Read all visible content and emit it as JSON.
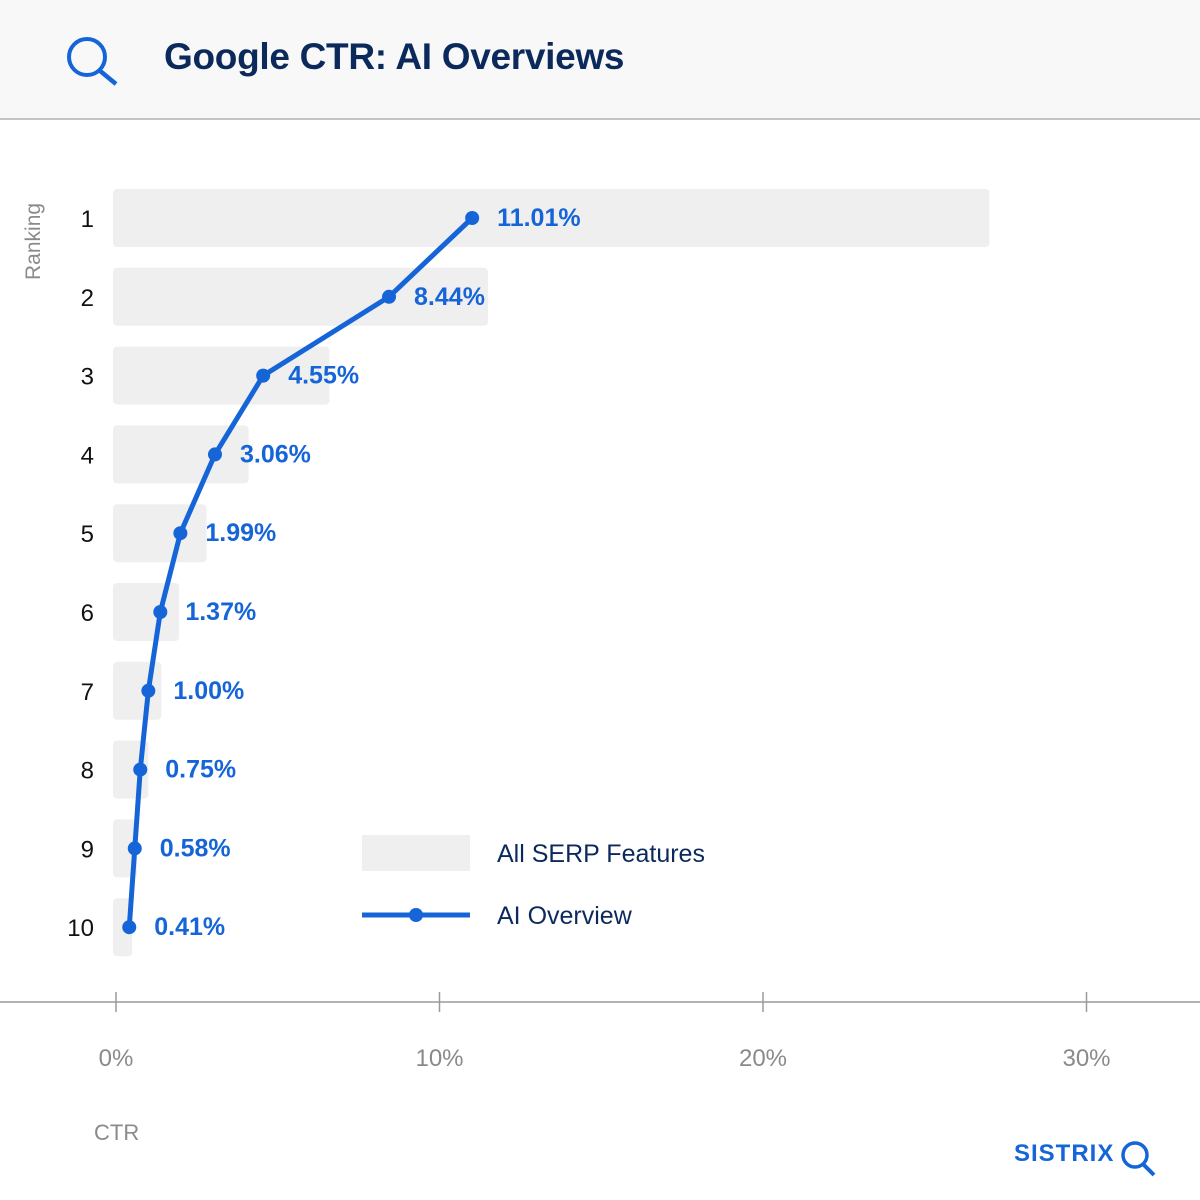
{
  "header": {
    "title": "Google CTR: AI Overviews",
    "icon": "search-icon"
  },
  "brand": {
    "name": "SISTRIX",
    "icon": "search-icon"
  },
  "colors": {
    "accent": "#1565d8",
    "bar": "#efefef",
    "title": "#0b2a5b"
  },
  "chart_data": {
    "type": "bar",
    "title": "Google CTR: AI Overviews",
    "orientation": "horizontal",
    "xlabel": "CTR",
    "ylabel": "Ranking",
    "xlim": [
      0,
      32
    ],
    "xticks": [
      "0%",
      "10%",
      "20%",
      "30%"
    ],
    "xtick_values": [
      0,
      10,
      20,
      30
    ],
    "categories": [
      "1",
      "2",
      "3",
      "4",
      "5",
      "6",
      "7",
      "8",
      "9",
      "10"
    ],
    "series": [
      {
        "name": "All SERP Features",
        "type": "bar",
        "values": [
          27.0,
          11.5,
          6.6,
          4.1,
          2.8,
          1.95,
          1.4,
          1.0,
          0.65,
          0.5
        ]
      },
      {
        "name": "AI Overview",
        "type": "line",
        "values": [
          11.01,
          8.44,
          4.55,
          3.06,
          1.99,
          1.37,
          1.0,
          0.75,
          0.58,
          0.41
        ],
        "labels": [
          "11.01%",
          "8.44%",
          "4.55%",
          "3.06%",
          "1.99%",
          "1.37%",
          "1.00%",
          "0.75%",
          "0.58%",
          "0.41%"
        ]
      }
    ],
    "legend": {
      "placement": "bottom-center",
      "entries": [
        "All SERP Features",
        "AI Overview"
      ]
    },
    "grid": false
  }
}
